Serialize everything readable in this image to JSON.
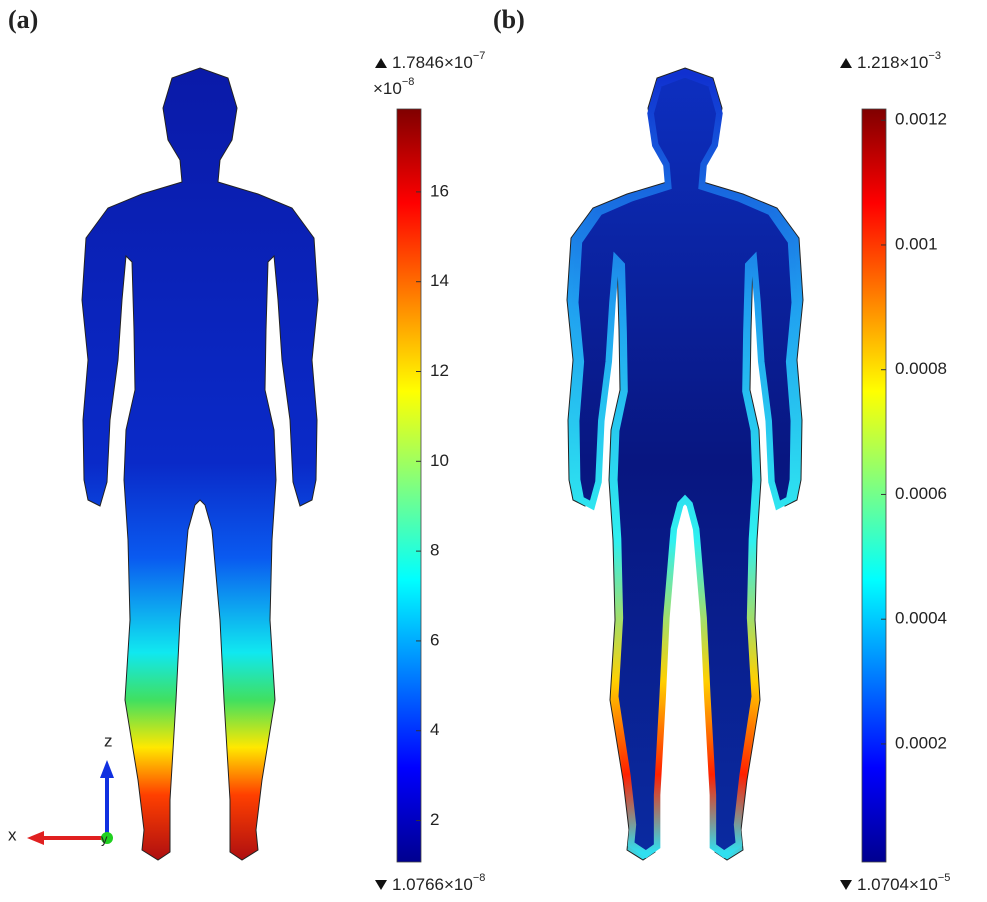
{
  "chart_data": [
    {
      "type": "colormap",
      "label": "(a)",
      "colormap": "jet",
      "max_label": {
        "text": "1.7846×10",
        "exp": "−7"
      },
      "scale_label": {
        "text": "×10",
        "exp": "−8"
      },
      "min_label": {
        "text": "1.0766×10",
        "exp": "−8"
      },
      "clim": [
        1.0766,
        17.846
      ],
      "cticks": [
        2,
        4,
        6,
        8,
        10,
        12,
        14,
        16
      ]
    },
    {
      "type": "colormap",
      "label": "(b)",
      "colormap": "jet",
      "max_label": {
        "text": "1.218×10",
        "exp": "−3"
      },
      "min_label": {
        "text": "1.0704×10",
        "exp": "−5"
      },
      "clim": [
        1.0704e-05,
        0.001218
      ],
      "cticks": [
        0.0002,
        0.0004,
        0.0006,
        0.0008,
        0.001,
        0.0012
      ]
    }
  ],
  "axes_triad": {
    "z": "z",
    "x": "x",
    "y": "y"
  }
}
